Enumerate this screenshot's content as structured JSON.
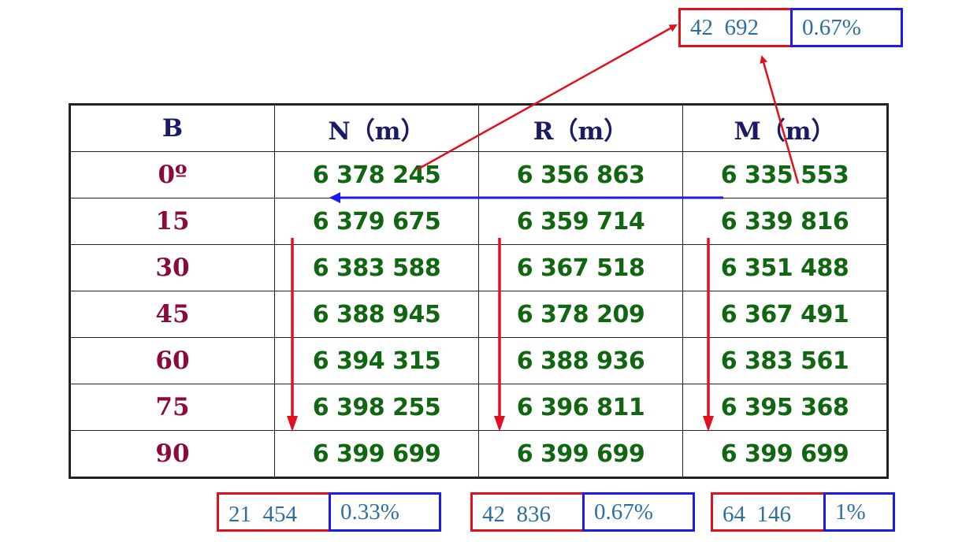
{
  "table": {
    "headers": [
      "B",
      "N（m）",
      "R（m）",
      "M（m）"
    ],
    "rows": [
      {
        "b": "0º",
        "n": "6 378 245",
        "r": "6 356 863",
        "m": "6  335 553"
      },
      {
        "b": "15",
        "n": "6 379 675",
        "r": "6 359 714",
        "m": "6 339 816"
      },
      {
        "b": "30",
        "n": "6 383 588",
        "r": "6 367 518",
        "m": "6 351 488"
      },
      {
        "b": "45",
        "n": "6 388 945",
        "r": "6 378 209",
        "m": "6 367 491"
      },
      {
        "b": "60",
        "n": "6 394 315",
        "r": "6 388 936",
        "m": "6 383 561"
      },
      {
        "b": "75",
        "n": "6 398 255",
        "r": "6 396 811",
        "m": "6 395 368"
      },
      {
        "b": "90",
        "n": "6 399 699",
        "r": "6 399 699",
        "m": "6 399 699"
      }
    ]
  },
  "annotations": {
    "top": {
      "value": "42  692",
      "percent": "0.67%"
    },
    "n_col": {
      "value": "21  454",
      "percent": "0.33%"
    },
    "r_col": {
      "value": "42  836",
      "percent": "0.67%"
    },
    "m_col": {
      "value": "64  146",
      "percent": "1%"
    }
  },
  "colors": {
    "header_text": "#1a1a66",
    "latitude_text": "#8b0a3c",
    "value_text": "#116611",
    "annotation_text": "#2e6fa0",
    "red_arrow": "#e0101e",
    "blue_arrow": "#1a1aee"
  }
}
